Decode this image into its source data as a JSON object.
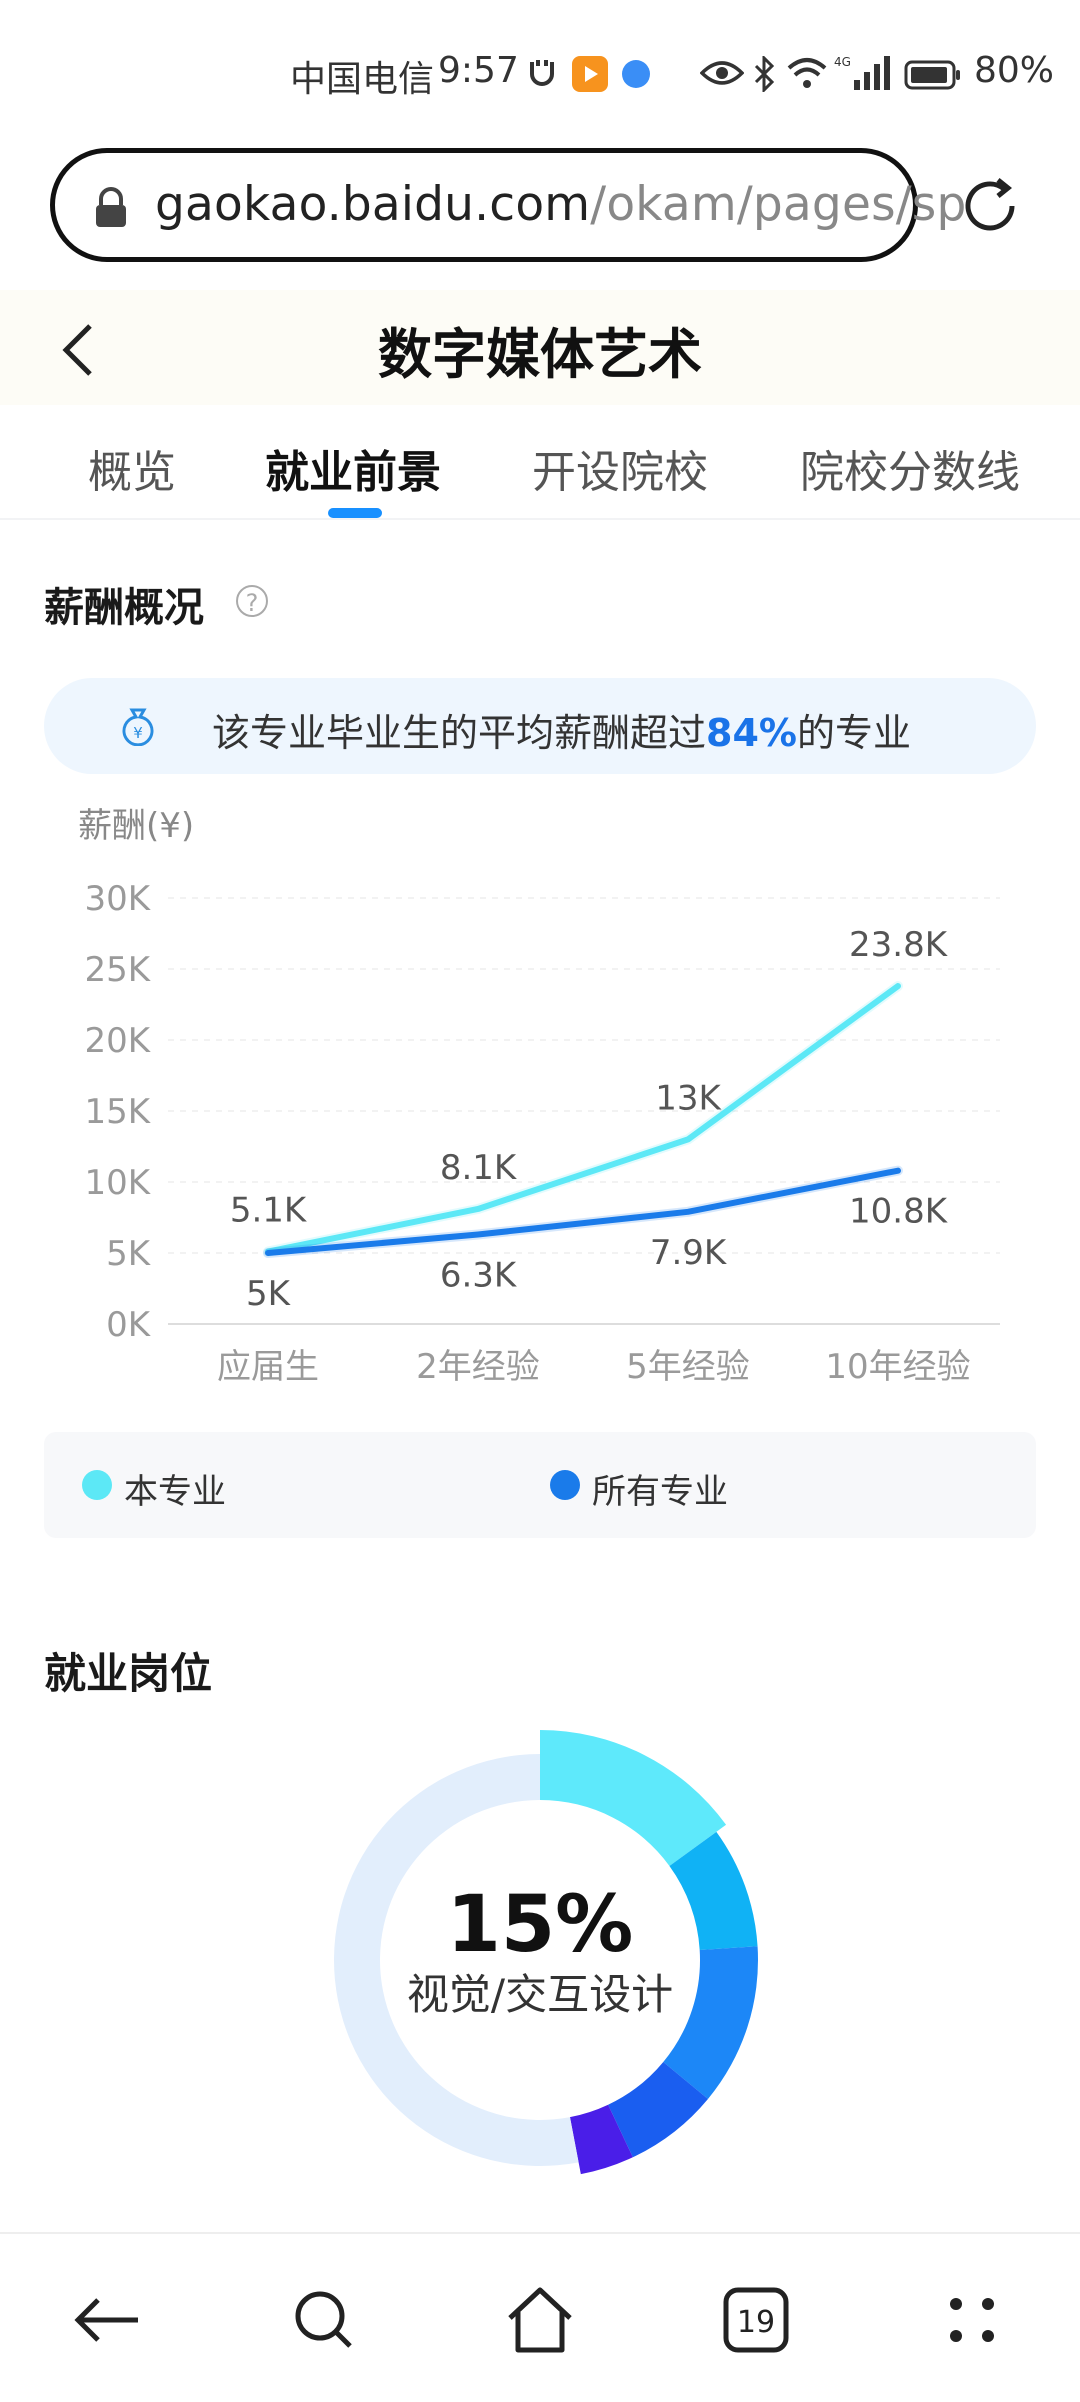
{
  "status_bar": {
    "carrier": "中国电信",
    "time": "9:57",
    "battery": "80%"
  },
  "browser": {
    "url_host": "gaokao.baidu.com",
    "url_path": "/okam/pages/sp",
    "tab_count": "19"
  },
  "page": {
    "title": "数字媒体艺术"
  },
  "tabs": [
    {
      "label": "概览",
      "active": false
    },
    {
      "label": "就业前景",
      "active": true
    },
    {
      "label": "开设院校",
      "active": false
    },
    {
      "label": "院校分数线",
      "active": false
    }
  ],
  "salary": {
    "section_title": "薪酬概况",
    "help_symbol": "?",
    "banner_prefix": "该专业毕业生的平均薪酬超过",
    "banner_highlight": "84%",
    "banner_suffix": "的专业"
  },
  "chart_data": {
    "type": "line",
    "ylabel": "薪酬(¥)",
    "categories": [
      "应届生",
      "2年经验",
      "5年经验",
      "10年经验"
    ],
    "ylim": [
      0,
      30
    ],
    "yticks": [
      "0K",
      "5K",
      "10K",
      "15K",
      "20K",
      "25K",
      "30K"
    ],
    "grid": true,
    "legend_position": "bottom",
    "series": [
      {
        "name": "本专业",
        "values": [
          5.1,
          8.1,
          13,
          23.8
        ],
        "labels": [
          "5.1K",
          "8.1K",
          "13K",
          "23.8K"
        ],
        "color": "#5ce8f6"
      },
      {
        "name": "所有专业",
        "values": [
          5,
          6.3,
          7.9,
          10.8
        ],
        "labels": [
          "5K",
          "6.3K",
          "7.9K",
          "10.8K"
        ],
        "color": "#1a7bea"
      }
    ]
  },
  "jobs": {
    "section_title": "就业岗位",
    "top_percent": "15%",
    "top_label": "视觉/交互设计",
    "donut_percentages": [
      15,
      9,
      12,
      7,
      4,
      53
    ],
    "donut_colors": [
      "#5ee9fb",
      "#10b2f5",
      "#1c87f7",
      "#1a5ef0",
      "#4a1ee8",
      "#e2eefc"
    ]
  },
  "icons": {
    "lock": "lock-icon",
    "reload": "reload-icon",
    "back": "chevron-left-icon",
    "help": "help-icon",
    "money_bag": "money-bag-icon",
    "nav_back": "arrow-left-icon",
    "nav_search": "search-icon",
    "nav_home": "home-icon",
    "nav_tabs": "tabs-icon",
    "nav_menu": "menu-dots-icon"
  }
}
